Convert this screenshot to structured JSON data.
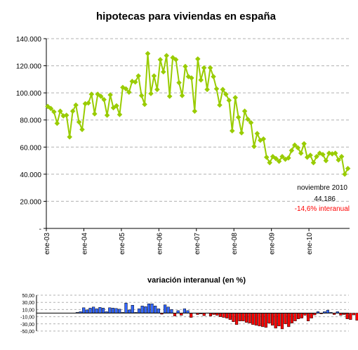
{
  "chart_data": [
    {
      "type": "line",
      "title": "hipotecas para viviendas en españa",
      "ylim": [
        0,
        140000
      ],
      "y_ticks": [
        "-",
        "20.000",
        "40.000",
        "60.000",
        "80.000",
        "100.000",
        "120.000",
        "140.000"
      ],
      "x_tick_labels": [
        "ene-03",
        "ene-04",
        "ene-05",
        "ene-06",
        "ene-07",
        "ene-08",
        "ene-09",
        "ene-10"
      ],
      "grid": true,
      "series_color": "#99cc00",
      "start_month": "ene-03",
      "values": [
        90000,
        88500,
        86000,
        77500,
        86500,
        83000,
        83500,
        67500,
        86500,
        91000,
        78500,
        73000,
        92000,
        92500,
        99000,
        84500,
        99000,
        97500,
        95000,
        83500,
        98500,
        89000,
        90500,
        84000,
        104000,
        103000,
        100500,
        108500,
        108000,
        112500,
        98000,
        91500,
        129000,
        99500,
        112500,
        102500,
        124500,
        115500,
        127500,
        97500,
        126000,
        124500,
        107500,
        98000,
        119500,
        112000,
        111000,
        86500,
        125000,
        109500,
        118500,
        102500,
        118500,
        112000,
        103000,
        91000,
        102500,
        99000,
        94500,
        72000,
        96500,
        82000,
        70500,
        86500,
        80500,
        78000,
        60500,
        70000,
        65000,
        66000,
        52500,
        48500,
        53000,
        51500,
        49500,
        53000,
        51000,
        52000,
        57500,
        61500,
        59500,
        55500,
        62500,
        52500,
        54000,
        48500,
        53000,
        55500,
        54500,
        50000,
        55500,
        55000,
        55500,
        50500,
        53000,
        40000,
        44186
      ],
      "annotations": {
        "month": "noviembre 2010",
        "value": "44.186",
        "change": "-14,6% interanual"
      }
    },
    {
      "type": "bar",
      "title": "variación interanual (en %)",
      "ylim": [
        -50,
        50
      ],
      "y_ticks": [
        "50,00",
        "30,00",
        "10,00",
        "-10,00",
        "-30,00",
        "-50,00"
      ],
      "positive_color": "#3366ff",
      "negative_color": "#ff0000",
      "start_month": "ene-04",
      "values": [
        2,
        4,
        15,
        9,
        14,
        17,
        12,
        16,
        14,
        4,
        15,
        14,
        13,
        11,
        2,
        28,
        9,
        22,
        2,
        12,
        20,
        18,
        26,
        26,
        20,
        12,
        -3,
        23,
        17,
        10,
        -8,
        7,
        -6,
        12,
        7,
        -12,
        null,
        -4,
        -2,
        -7,
        null,
        -8,
        -4,
        -6,
        -10,
        -12,
        -14,
        -18,
        -24,
        -32,
        -22,
        -22,
        -26,
        -28,
        -32,
        -34,
        -36,
        -38,
        -40,
        -28,
        -34,
        -42,
        -36,
        -44,
        -30,
        -38,
        -28,
        -22,
        -16,
        -14,
        -6,
        -22,
        -14,
        -5,
        4,
        -2,
        4,
        8,
        2,
        -4,
        4,
        -6,
        -4,
        -16,
        -18,
        -5,
        -20,
        -15
      ]
    }
  ]
}
